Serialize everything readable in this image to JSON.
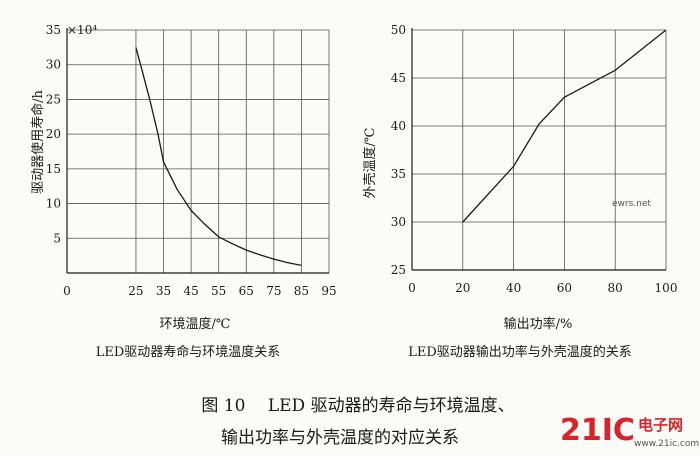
{
  "chart_data": [
    {
      "type": "line",
      "xlabel": "环境温度/℃",
      "ylabel": "驱动器使用寿命/h",
      "y_multiplier_label": "×10⁴",
      "xlim": [
        0,
        95
      ],
      "ylim": [
        0,
        35
      ],
      "xticks": [
        0,
        25,
        35,
        45,
        55,
        65,
        75,
        85,
        95
      ],
      "yticks": [
        5,
        10,
        15,
        20,
        25,
        30,
        35
      ],
      "grid": true,
      "x": [
        25,
        27,
        30,
        33,
        35,
        40,
        45,
        50,
        55,
        60,
        65,
        70,
        75,
        80,
        85
      ],
      "y": [
        32.5,
        29.5,
        25,
        20,
        16,
        12,
        9,
        7,
        5.2,
        4.2,
        3.3,
        2.6,
        2.0,
        1.5,
        1.1
      ],
      "caption": "LED驱动器寿命与环境温度关系"
    },
    {
      "type": "line",
      "xlabel": "输出功率/%",
      "ylabel": "外壳温度/℃",
      "xlim": [
        0,
        100
      ],
      "ylim": [
        25,
        50
      ],
      "xticks": [
        0,
        20,
        40,
        60,
        80,
        100
      ],
      "yticks": [
        25,
        30,
        35,
        40,
        45,
        50
      ],
      "grid": true,
      "x": [
        20,
        40,
        50,
        60,
        80,
        100
      ],
      "y": [
        30,
        35.8,
        40.2,
        43,
        45.8,
        50
      ],
      "caption": "LED驱动器输出功率与外壳温度的关系"
    }
  ],
  "figure_caption": {
    "line1": "图 10　 LED 驱动器的寿命与环境温度、",
    "line2": "输出功率与外壳温度的对应关系"
  },
  "watermark": {
    "brand": "21IC",
    "brand_cn": "电子网",
    "site": "www.21ic.com",
    "small_text": "ewrs.net"
  },
  "colors": {
    "ink": "#1a1a1a",
    "grid": "#555555",
    "watermark_red": "#d8232a"
  }
}
